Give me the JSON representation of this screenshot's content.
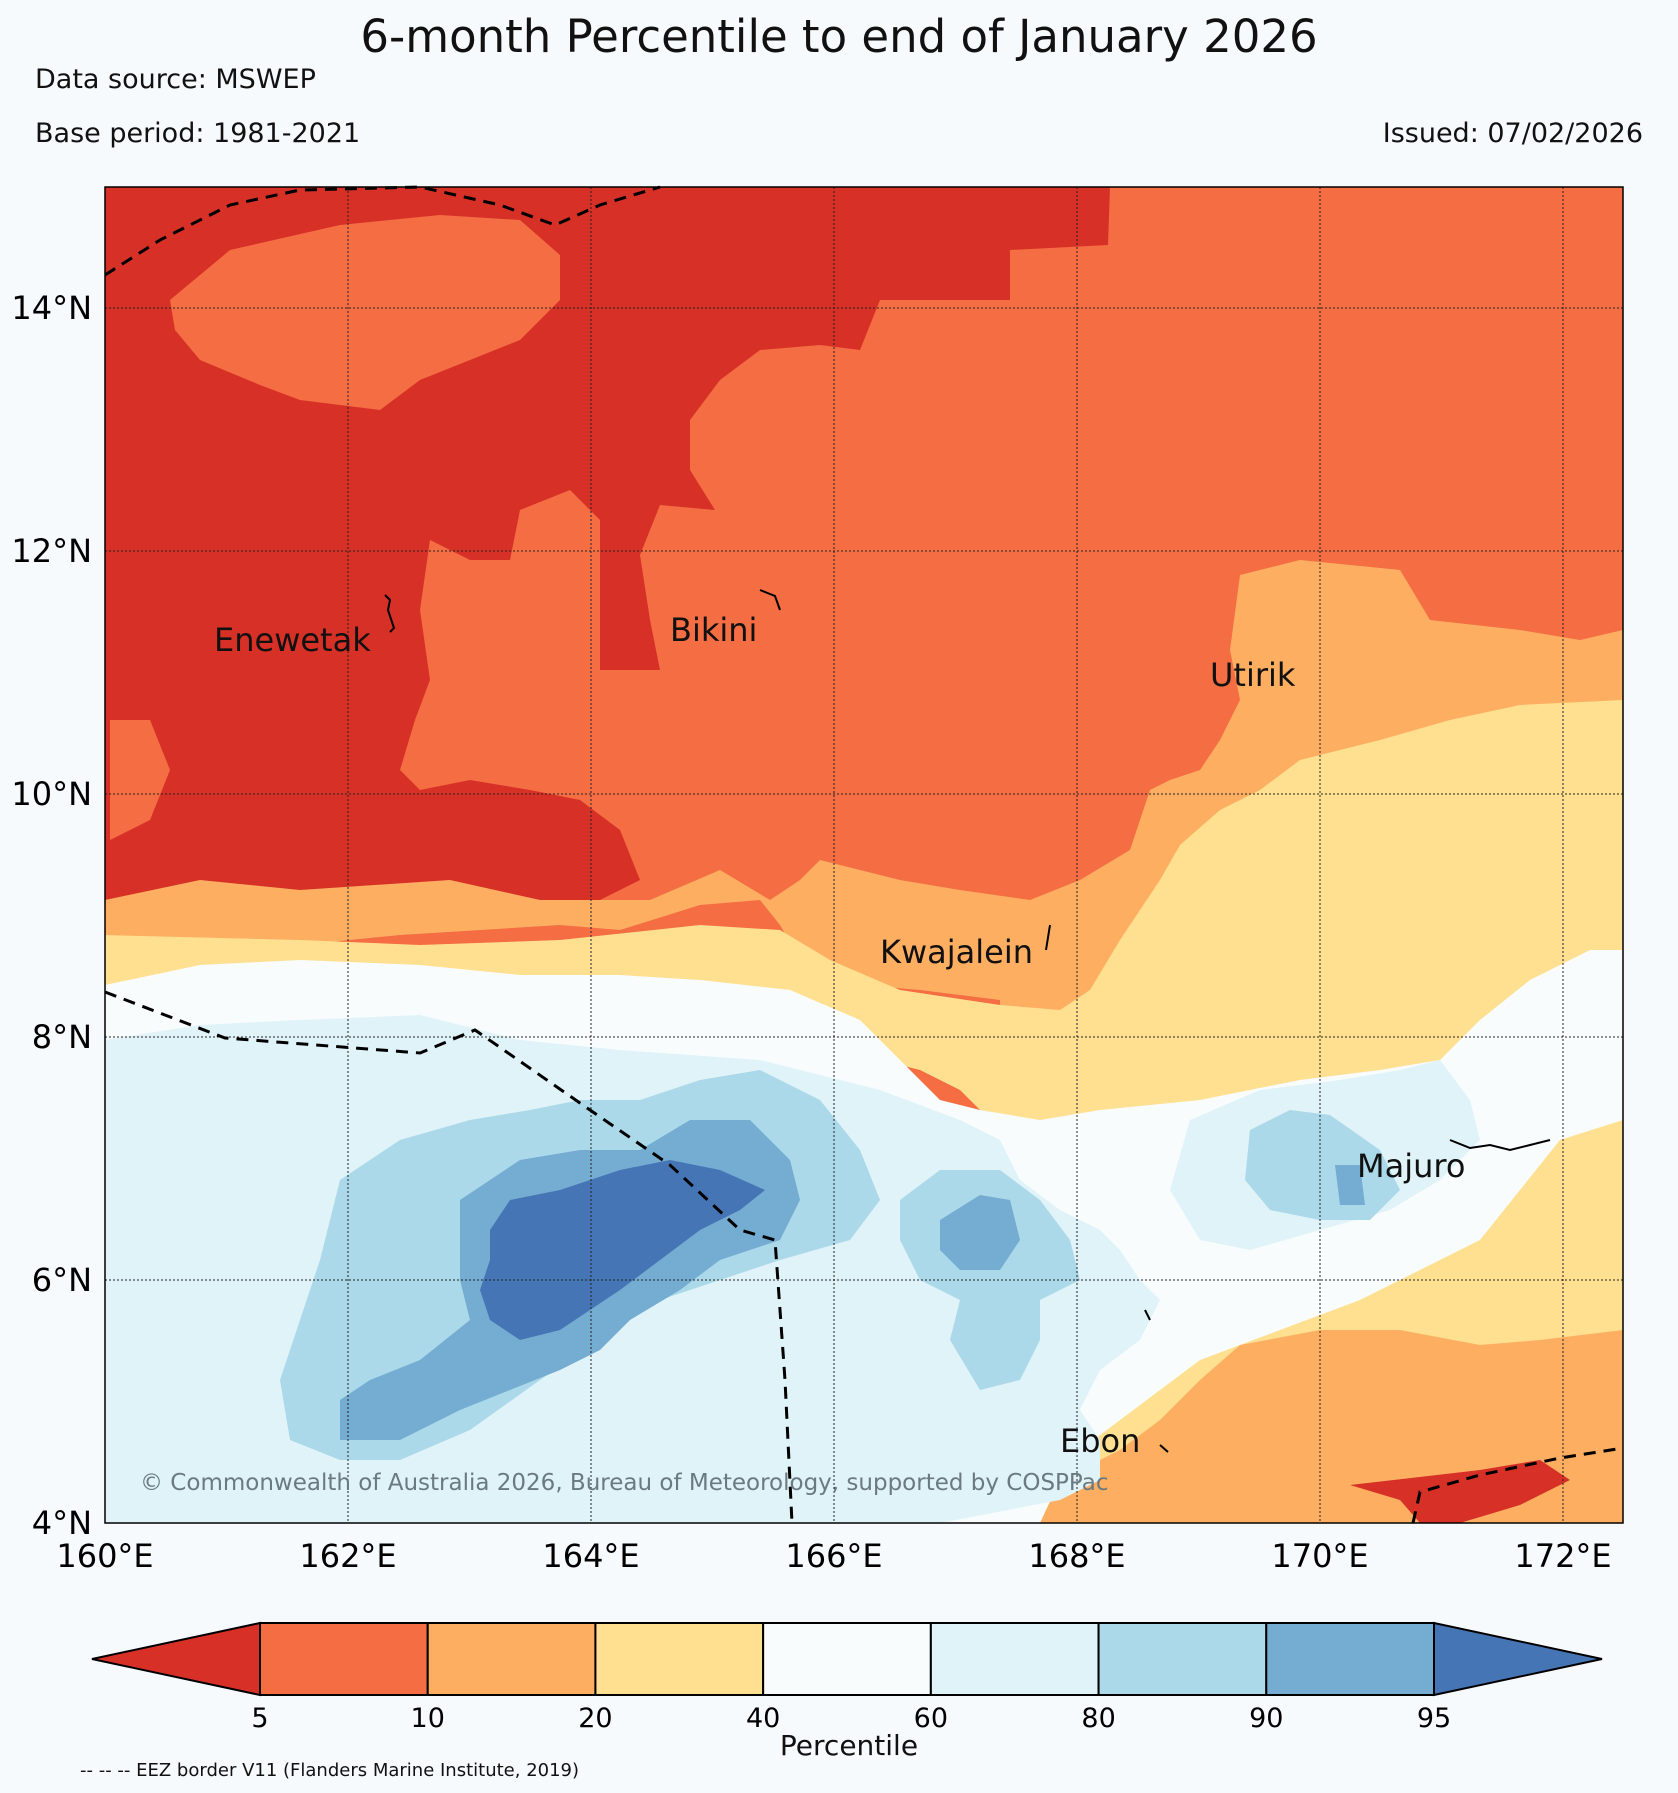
{
  "header": {
    "title": "6-month Percentile to end of January 2026",
    "data_source": "Data source: MSWEP",
    "base_period": "Base period: 1981-2021",
    "issued": "Issued: 07/02/2026"
  },
  "map": {
    "lon_labels": [
      "160°E",
      "162°E",
      "164°E",
      "166°E",
      "168°E",
      "170°E",
      "172°E"
    ],
    "lat_labels": [
      "14°N",
      "12°N",
      "10°N",
      "8°N",
      "6°N",
      "4°N"
    ],
    "places": [
      {
        "name": "Enewetak"
      },
      {
        "name": "Bikini"
      },
      {
        "name": "Utirik"
      },
      {
        "name": "Kwajalein"
      },
      {
        "name": "Majuro"
      },
      {
        "name": "Ebon"
      }
    ],
    "copyright": "© Commonwealth of Australia 2026, Bureau of Meteorology, supported by COSPPac"
  },
  "colorbar": {
    "title": "Percentile",
    "ticks": [
      "5",
      "10",
      "20",
      "40",
      "60",
      "80",
      "90",
      "95"
    ],
    "colors": [
      "#d73027",
      "#f46d43",
      "#fdae61",
      "#fee090",
      "#f8fcfd",
      "#e0f3f8",
      "#abd9e9",
      "#74add1",
      "#4575b4"
    ]
  },
  "footer": {
    "eez_note": "-- -- -- EEZ border V11 (Flanders Marine Institute, 2019)"
  }
}
